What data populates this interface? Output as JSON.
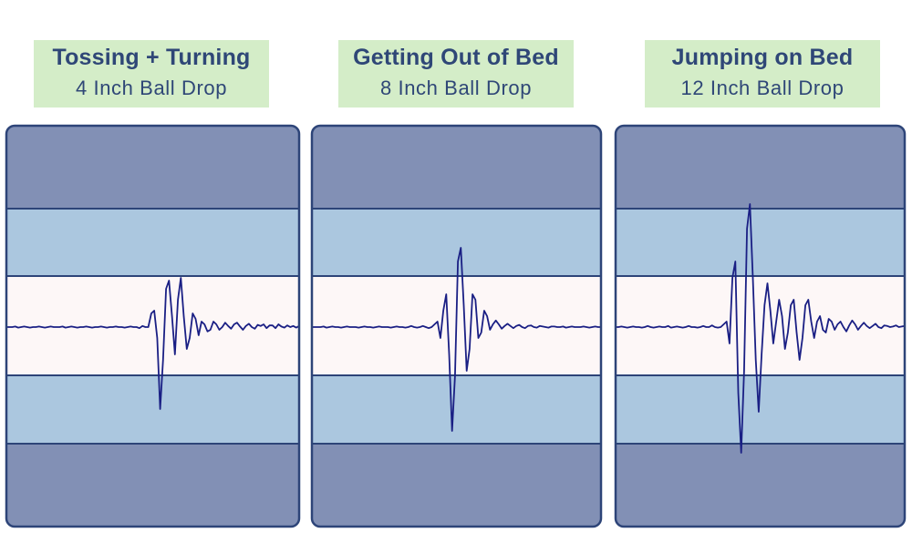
{
  "colors": {
    "outer_band": "#8290b5",
    "mid_band": "#abc7df",
    "center_band": "#fdf7f7",
    "border": "#2d4478",
    "trace": "#1a1f84",
    "label_bg": "#d4edc8",
    "label_text": "#2f4777"
  },
  "chart_data": [
    {
      "type": "line",
      "title": "Tossing + Turning",
      "subtitle": "4 Inch Ball Drop",
      "ylim": [
        -3,
        3
      ],
      "series": [
        {
          "values": [
            0,
            0,
            0,
            0.01,
            -0.01,
            0,
            0.01,
            0,
            -0.01,
            0,
            0,
            0.01,
            0,
            -0.01,
            0,
            0.01,
            0,
            0,
            0,
            0.01,
            -0.01,
            0,
            0.01,
            0,
            -0.01,
            0,
            0,
            0.01,
            0,
            -0.01,
            0,
            0,
            0.01,
            0,
            -0.01,
            0,
            0,
            0.01,
            0,
            0,
            -0.01,
            0,
            0.01,
            0,
            0,
            -0.02,
            0.02,
            0,
            0,
            0.25,
            0.3,
            -0.2,
            -1.5,
            -0.6,
            0.7,
            0.85,
            0.2,
            -0.5,
            0.5,
            0.9,
            0.2,
            -0.4,
            -0.2,
            0.25,
            0.15,
            -0.15,
            0.1,
            0.05,
            -0.08,
            -0.05,
            0.1,
            0.05,
            -0.05,
            0,
            0.08,
            0.02,
            -0.03,
            0.05,
            0.08,
            0.01,
            -0.05,
            0.02,
            0.06,
            0,
            -0.03,
            0.04,
            0.02,
            0.05,
            -0.02,
            0.03,
            0.03,
            -0.02,
            0.05,
            0.01,
            -0.01,
            0.03,
            0,
            0.02,
            -0.01,
            0.02
          ]
        }
      ]
    },
    {
      "type": "line",
      "title": "Getting Out of Bed",
      "subtitle": "8 Inch Ball Drop",
      "ylim": [
        -3,
        3
      ],
      "series": [
        {
          "values": [
            0,
            0,
            0,
            0,
            0.01,
            -0.01,
            0,
            0.01,
            0,
            0,
            -0.01,
            0,
            0.01,
            0,
            0,
            0,
            -0.01,
            0,
            0.01,
            0,
            0,
            -0.01,
            0,
            0.01,
            0,
            0,
            0,
            -0.01,
            0,
            0.01,
            0,
            0,
            -0.01,
            0,
            0.02,
            0,
            -0.01,
            0,
            0.02,
            0,
            -0.02,
            0,
            0.05,
            0.1,
            -0.2,
            0.3,
            0.6,
            -0.5,
            -1.9,
            -0.9,
            1.2,
            1.45,
            0.4,
            -0.8,
            -0.4,
            0.6,
            0.5,
            -0.2,
            -0.1,
            0.3,
            0.2,
            -0.05,
            0.05,
            0.12,
            0.05,
            -0.03,
            0.02,
            0.06,
            0.02,
            -0.02,
            0.02,
            0.04,
            0,
            -0.02,
            0.02,
            0.03,
            0,
            -0.01,
            0.02,
            0.01,
            0,
            -0.01,
            0.01,
            0.01,
            0,
            0,
            0.01,
            -0.01,
            0,
            0.01,
            0,
            0,
            0,
            0.01,
            0,
            -0.01,
            0,
            0.01,
            0,
            0
          ]
        }
      ]
    },
    {
      "type": "line",
      "title": "Jumping on Bed",
      "subtitle": "12 Inch Ball Drop",
      "ylim": [
        -3,
        3
      ],
      "series": [
        {
          "values": [
            0,
            0,
            0.01,
            0,
            -0.01,
            0,
            0.01,
            0,
            0,
            -0.01,
            0,
            0.02,
            0,
            -0.01,
            0,
            0.01,
            0,
            0,
            0.02,
            -0.01,
            0,
            0.01,
            0,
            -0.01,
            0,
            0.02,
            0,
            0,
            -0.01,
            0,
            0.02,
            0,
            0,
            0.03,
            0,
            -0.01,
            0,
            0.05,
            0.1,
            -0.3,
            0.9,
            1.2,
            -1.2,
            -2.3,
            -0.8,
            1.8,
            2.25,
            0.9,
            -0.6,
            -1.55,
            -0.5,
            0.4,
            0.8,
            0.3,
            -0.3,
            0.1,
            0.5,
            0.2,
            -0.4,
            -0.1,
            0.4,
            0.5,
            -0.1,
            -0.6,
            -0.2,
            0.4,
            0.5,
            0.1,
            -0.2,
            0.1,
            0.2,
            -0.05,
            -0.1,
            0.15,
            0.1,
            -0.05,
            0.05,
            0.1,
            0,
            -0.08,
            0.03,
            0.12,
            0.05,
            -0.05,
            0.02,
            0.08,
            0.02,
            -0.02,
            0.02,
            0.06,
            0,
            -0.02,
            0.03,
            0.02,
            0,
            0.01,
            0.03,
            0,
            0.01,
            0.02
          ]
        }
      ]
    }
  ]
}
